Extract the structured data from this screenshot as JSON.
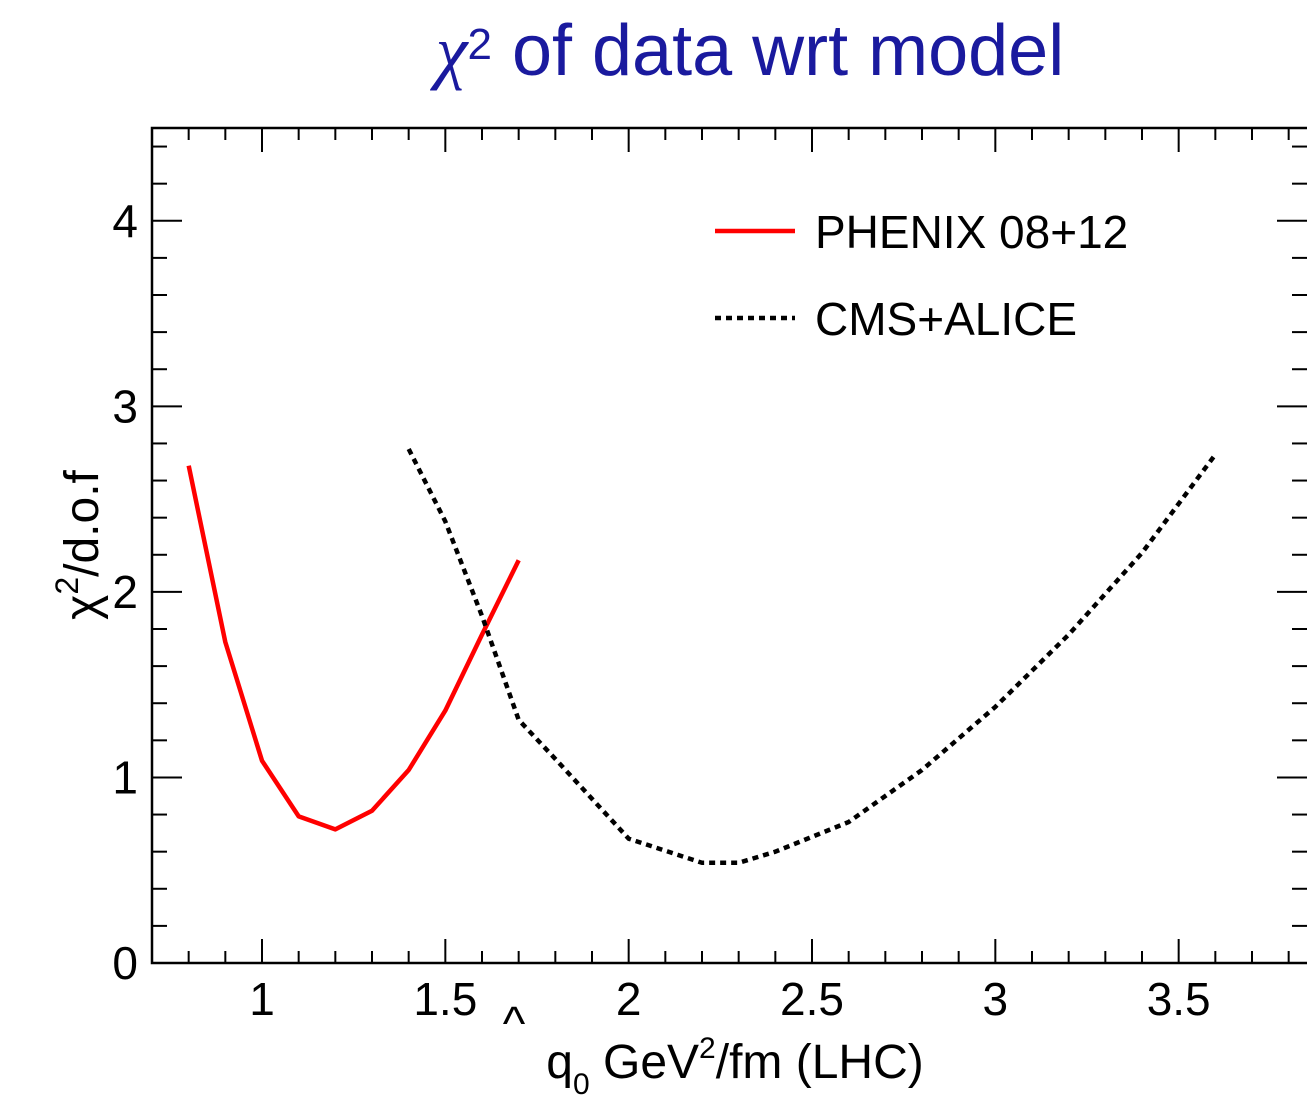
{
  "chart_data": {
    "type": "line",
    "title_symbol": "χ",
    "title_sup": "2",
    "title_rest": " of data wrt model",
    "xlabel": {
      "hat": "^",
      "q": "q",
      "sub": "0",
      "unit_pre": " GeV",
      "sup": "2",
      "unit_post": "/fm (LHC)"
    },
    "ylabel": {
      "pre": "χ",
      "sup": "2",
      "post": "/d.o.f"
    },
    "xlim": [
      0.7,
      3.85
    ],
    "ylim": [
      0,
      4.5
    ],
    "x_ticks": [
      1,
      1.5,
      2,
      2.5,
      3,
      3.5
    ],
    "x_tick_labels": [
      "1",
      "1.5",
      "2",
      "2.5",
      "3",
      "3.5"
    ],
    "y_ticks": [
      0,
      1,
      2,
      3,
      4
    ],
    "y_tick_labels": [
      "0",
      "1",
      "2",
      "3",
      "4"
    ],
    "legend_position": "top-right",
    "series": [
      {
        "name": "PHENIX 08+12",
        "color": "#ff0000",
        "style": "solid",
        "x": [
          0.8,
          0.9,
          1.0,
          1.1,
          1.2,
          1.3,
          1.4,
          1.5,
          1.6,
          1.7
        ],
        "y": [
          2.68,
          1.73,
          1.09,
          0.79,
          0.72,
          0.82,
          1.04,
          1.36,
          1.77,
          2.17
        ]
      },
      {
        "name": "CMS+ALICE",
        "color": "#000000",
        "style": "dotted",
        "x": [
          1.4,
          1.5,
          1.6,
          1.7,
          1.8,
          2.0,
          2.2,
          2.3,
          2.4,
          2.6,
          2.8,
          3.0,
          3.2,
          3.4,
          3.6
        ],
        "y": [
          2.77,
          2.38,
          1.87,
          1.31,
          1.1,
          0.67,
          0.54,
          0.54,
          0.6,
          0.76,
          1.04,
          1.38,
          1.77,
          2.21,
          2.74
        ]
      }
    ]
  }
}
